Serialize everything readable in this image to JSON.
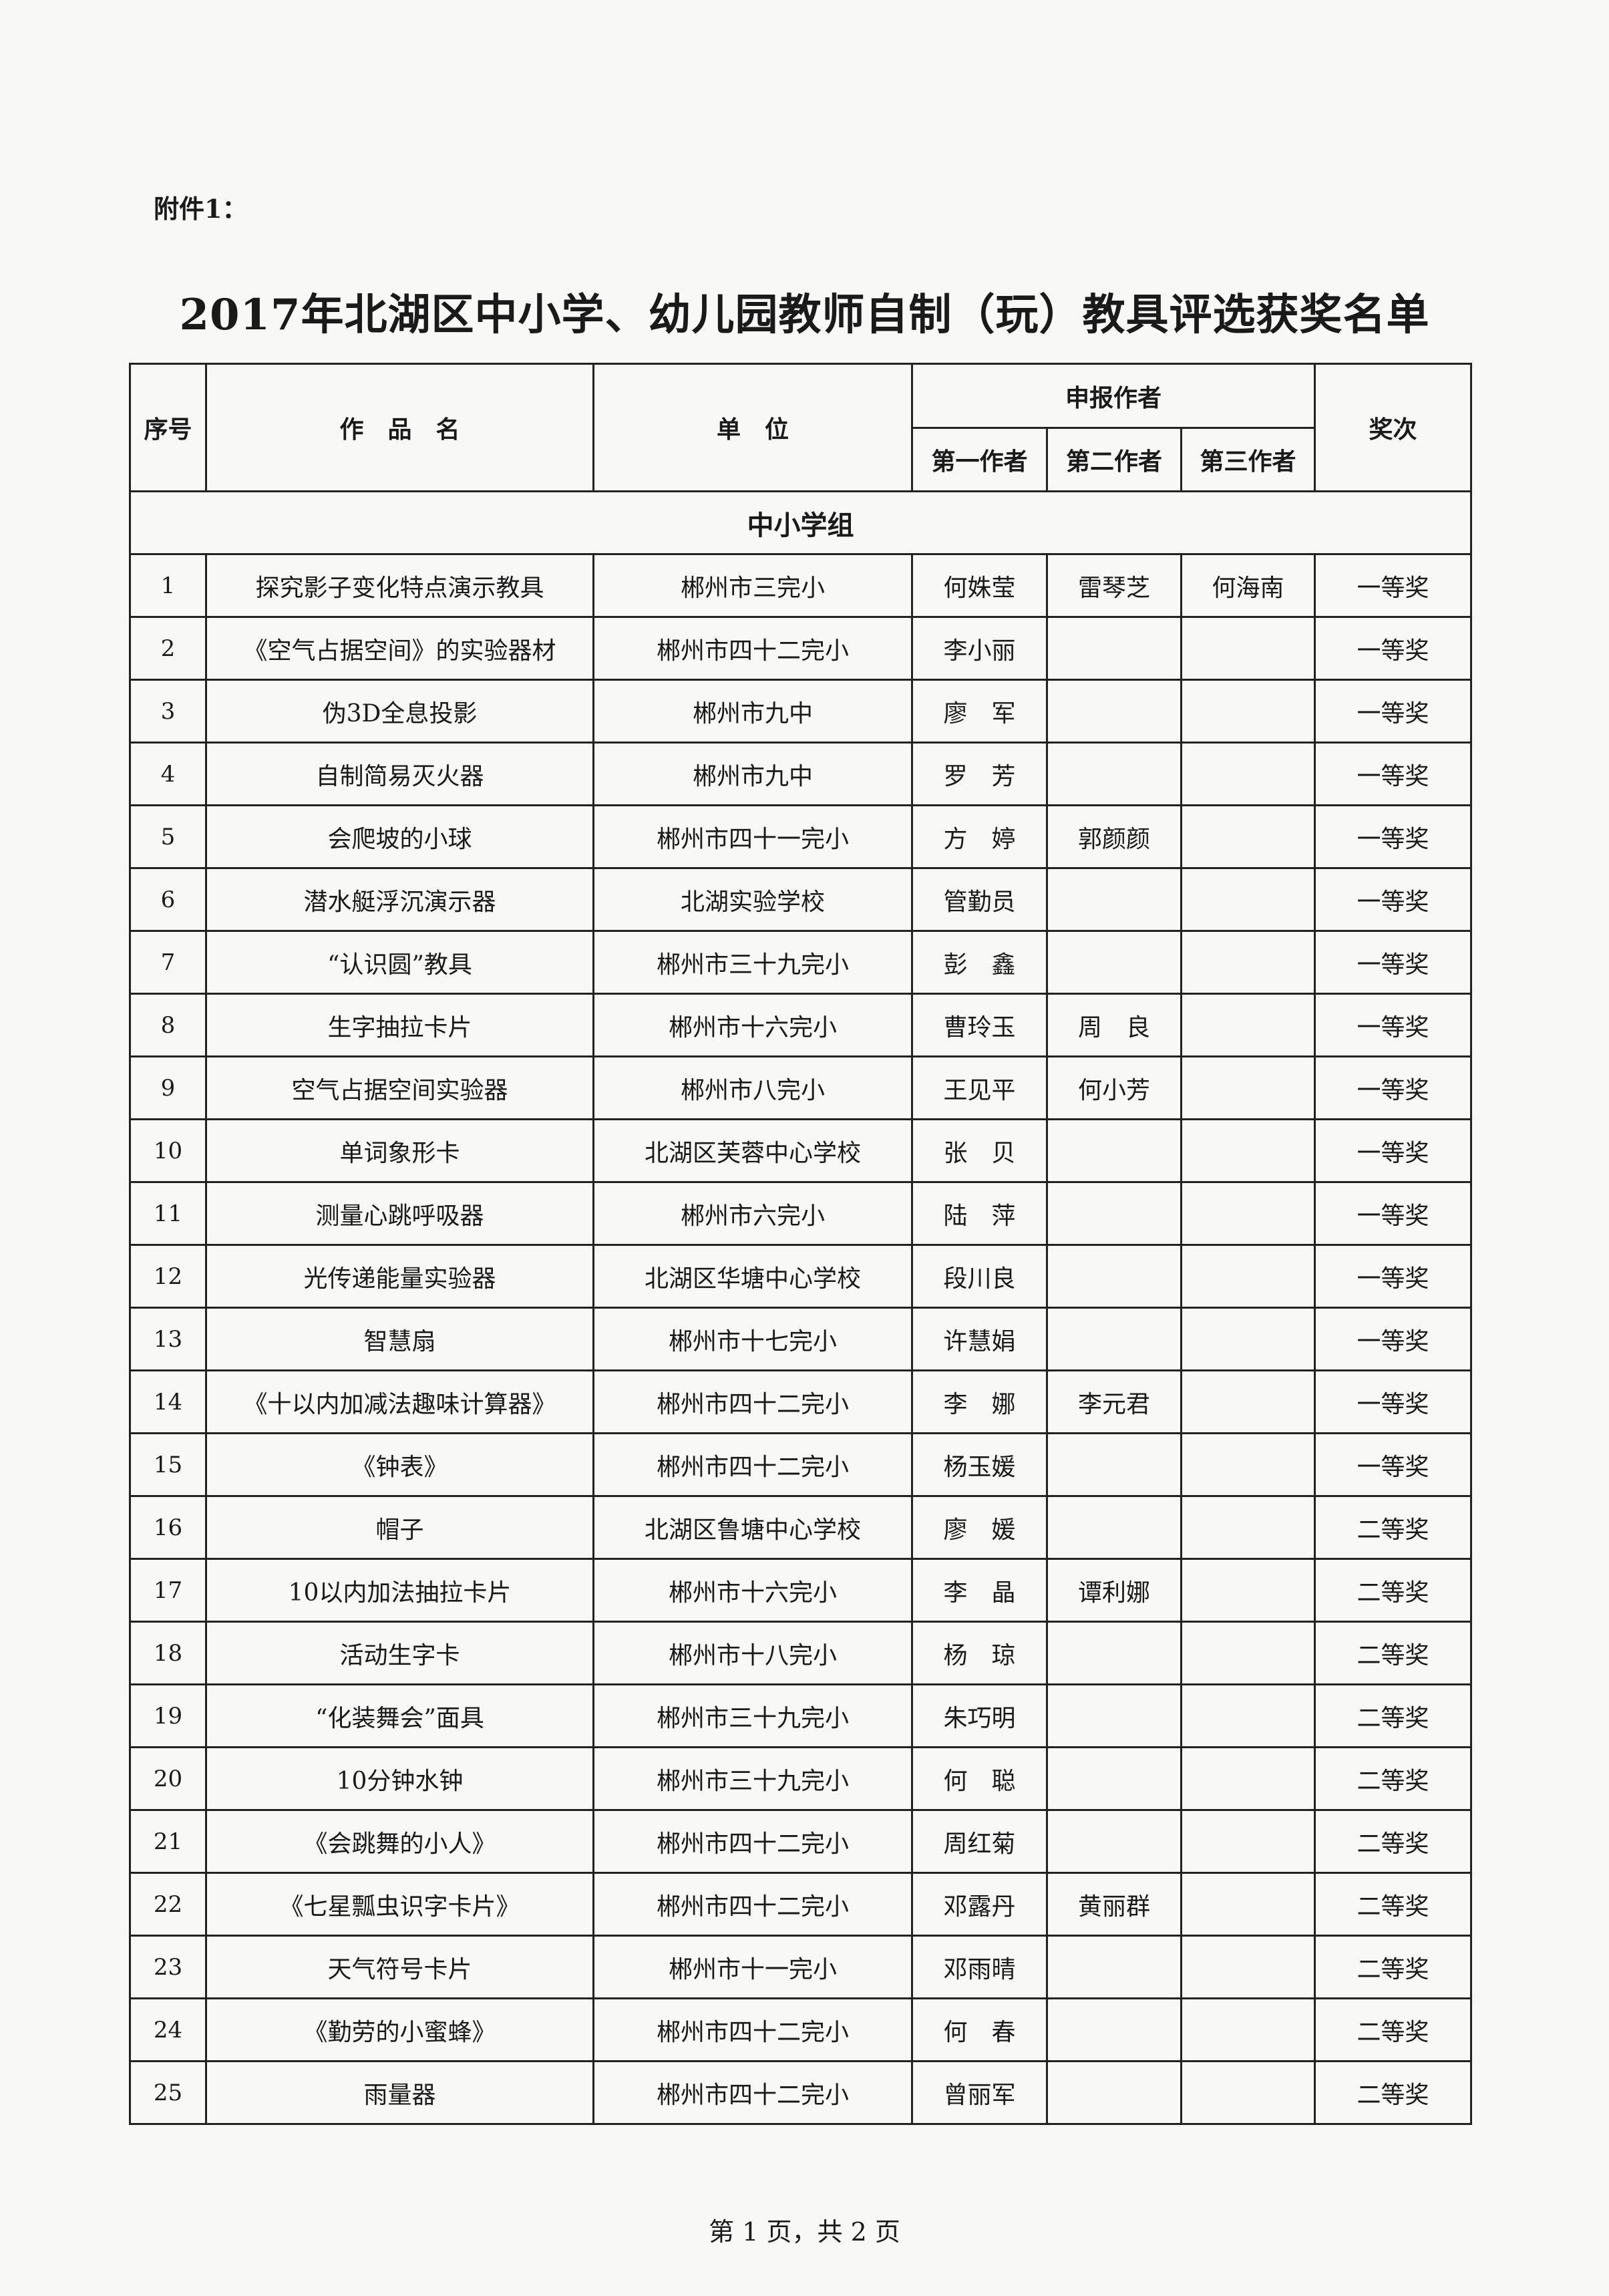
{
  "attachment_label": "附件1：",
  "title": "2017年北湖区中小学、幼儿园教师自制（玩）教具评选获奖名单",
  "table": {
    "headers": {
      "index": "序号",
      "work": "作　品　名",
      "unit": "单　位",
      "authors": "申报作者",
      "first_author": "第一作者",
      "second_author": "第二作者",
      "third_author": "第三作者",
      "award": "奖次"
    },
    "group_label": "中小学组",
    "rows": [
      {
        "no": "1",
        "work": "探究影子变化特点演示教具",
        "unit": "郴州市三完小",
        "a1": "何姝莹",
        "a2": "雷琴芝",
        "a3": "何海南",
        "award": "一等奖"
      },
      {
        "no": "2",
        "work": "《空气占据空间》的实验器材",
        "unit": "郴州市四十二完小",
        "a1": "李小丽",
        "a2": "",
        "a3": "",
        "award": "一等奖"
      },
      {
        "no": "3",
        "work": "伪3D全息投影",
        "unit": "郴州市九中",
        "a1": "廖　军",
        "a2": "",
        "a3": "",
        "award": "一等奖"
      },
      {
        "no": "4",
        "work": "自制简易灭火器",
        "unit": "郴州市九中",
        "a1": "罗　芳",
        "a2": "",
        "a3": "",
        "award": "一等奖"
      },
      {
        "no": "5",
        "work": "会爬坡的小球",
        "unit": "郴州市四十一完小",
        "a1": "方　婷",
        "a2": "郭颜颜",
        "a3": "",
        "award": "一等奖"
      },
      {
        "no": "6",
        "work": "潜水艇浮沉演示器",
        "unit": "北湖实验学校",
        "a1": "管勤员",
        "a2": "",
        "a3": "",
        "award": "一等奖"
      },
      {
        "no": "7",
        "work": "“认识圆”教具",
        "unit": "郴州市三十九完小",
        "a1": "彭　鑫",
        "a2": "",
        "a3": "",
        "award": "一等奖"
      },
      {
        "no": "8",
        "work": "生字抽拉卡片",
        "unit": "郴州市十六完小",
        "a1": "曹玲玉",
        "a2": "周　良",
        "a3": "",
        "award": "一等奖"
      },
      {
        "no": "9",
        "work": "空气占据空间实验器",
        "unit": "郴州市八完小",
        "a1": "王见平",
        "a2": "何小芳",
        "a3": "",
        "award": "一等奖"
      },
      {
        "no": "10",
        "work": "单词象形卡",
        "unit": "北湖区芙蓉中心学校",
        "a1": "张　贝",
        "a2": "",
        "a3": "",
        "award": "一等奖"
      },
      {
        "no": "11",
        "work": "测量心跳呼吸器",
        "unit": "郴州市六完小",
        "a1": "陆　萍",
        "a2": "",
        "a3": "",
        "award": "一等奖"
      },
      {
        "no": "12",
        "work": "光传递能量实验器",
        "unit": "北湖区华塘中心学校",
        "a1": "段川良",
        "a2": "",
        "a3": "",
        "award": "一等奖"
      },
      {
        "no": "13",
        "work": "智慧扇",
        "unit": "郴州市十七完小",
        "a1": "许慧娟",
        "a2": "",
        "a3": "",
        "award": "一等奖"
      },
      {
        "no": "14",
        "work": "《十以内加减法趣味计算器》",
        "unit": "郴州市四十二完小",
        "a1": "李　娜",
        "a2": "李元君",
        "a3": "",
        "award": "一等奖"
      },
      {
        "no": "15",
        "work": "《钟表》",
        "unit": "郴州市四十二完小",
        "a1": "杨玉媛",
        "a2": "",
        "a3": "",
        "award": "一等奖"
      },
      {
        "no": "16",
        "work": "帽子",
        "unit": "北湖区鲁塘中心学校",
        "a1": "廖　媛",
        "a2": "",
        "a3": "",
        "award": "二等奖"
      },
      {
        "no": "17",
        "work": "10以内加法抽拉卡片",
        "unit": "郴州市十六完小",
        "a1": "李　晶",
        "a2": "谭利娜",
        "a3": "",
        "award": "二等奖"
      },
      {
        "no": "18",
        "work": "活动生字卡",
        "unit": "郴州市十八完小",
        "a1": "杨　琼",
        "a2": "",
        "a3": "",
        "award": "二等奖"
      },
      {
        "no": "19",
        "work": "“化装舞会”面具",
        "unit": "郴州市三十九完小",
        "a1": "朱巧明",
        "a2": "",
        "a3": "",
        "award": "二等奖"
      },
      {
        "no": "20",
        "work": "10分钟水钟",
        "unit": "郴州市三十九完小",
        "a1": "何　聪",
        "a2": "",
        "a3": "",
        "award": "二等奖"
      },
      {
        "no": "21",
        "work": "《会跳舞的小人》",
        "unit": "郴州市四十二完小",
        "a1": "周红菊",
        "a2": "",
        "a3": "",
        "award": "二等奖"
      },
      {
        "no": "22",
        "work": "《七星瓢虫识字卡片》",
        "unit": "郴州市四十二完小",
        "a1": "邓露丹",
        "a2": "黄丽群",
        "a3": "",
        "award": "二等奖"
      },
      {
        "no": "23",
        "work": "天气符号卡片",
        "unit": "郴州市十一完小",
        "a1": "邓雨晴",
        "a2": "",
        "a3": "",
        "award": "二等奖"
      },
      {
        "no": "24",
        "work": "《勤劳的小蜜蜂》",
        "unit": "郴州市四十二完小",
        "a1": "何　春",
        "a2": "",
        "a3": "",
        "award": "二等奖"
      },
      {
        "no": "25",
        "work": "雨量器",
        "unit": "郴州市四十二完小",
        "a1": "曾丽军",
        "a2": "",
        "a3": "",
        "award": "二等奖"
      }
    ]
  },
  "footer": "第 1 页，共 2 页"
}
